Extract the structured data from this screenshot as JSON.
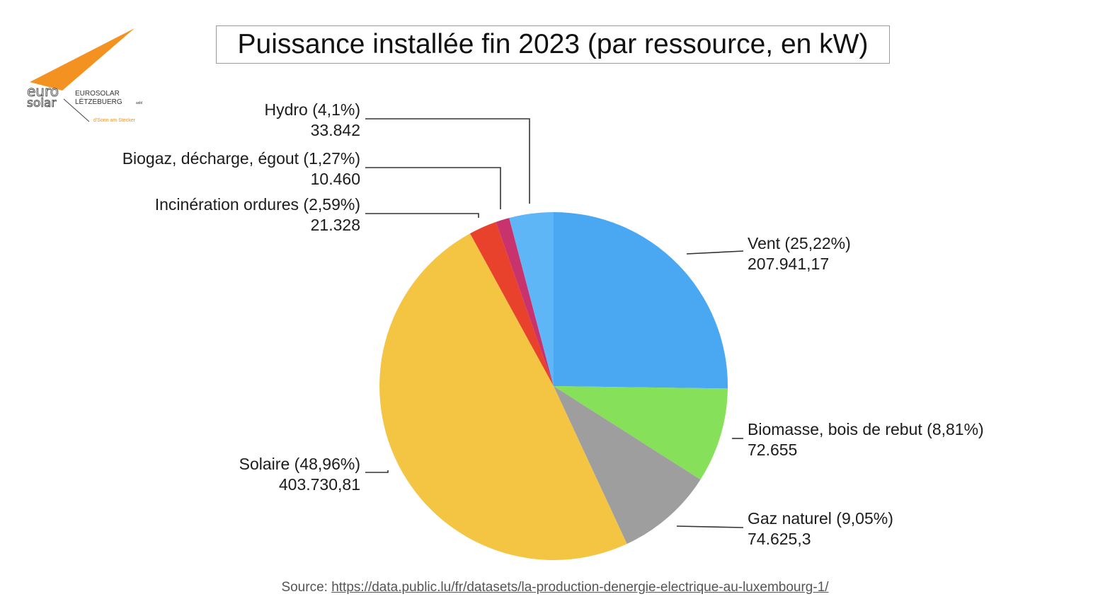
{
  "brand": {
    "logo_mark_top": "euro",
    "logo_mark_bottom": "solar",
    "name_line1": "EUROSOLAR",
    "name_line2": "LËTZEBUERG",
    "name_suffix": "asbl",
    "tagline": "d'Sonn am Stecker",
    "accent_color": "#f39221"
  },
  "chart_data": {
    "type": "pie",
    "title": "Puissance installée fin 2023 (par ressource, en kW)",
    "start_angle_deg": 0,
    "direction": "clockwise",
    "slices": [
      {
        "label": "Vent",
        "pct_text": "25,22%",
        "value_text": "207.941,17",
        "value": 207941.17,
        "percent": 25.22,
        "color": "#4aa8f2"
      },
      {
        "label": "Biomasse, bois de rebut",
        "pct_text": "8,81%",
        "value_text": "72.655",
        "value": 72655,
        "percent": 8.81,
        "color": "#86e05a"
      },
      {
        "label": "Gaz naturel",
        "pct_text": "9,05%",
        "value_text": "74.625,3",
        "value": 74625.3,
        "percent": 9.05,
        "color": "#9e9e9e"
      },
      {
        "label": "Solaire",
        "pct_text": "48,96%",
        "value_text": "403.730,81",
        "value": 403730.81,
        "percent": 48.96,
        "color": "#f4c443"
      },
      {
        "label": "Incinération ordures",
        "pct_text": "2,59%",
        "value_text": "21.328",
        "value": 21328,
        "percent": 2.59,
        "color": "#e8412c"
      },
      {
        "label": "Biogaz, décharge, égout",
        "pct_text": "1,27%",
        "value_text": "10.460",
        "value": 10460,
        "percent": 1.27,
        "color": "#c8336e"
      },
      {
        "label": "Hydro",
        "pct_text": "4,1%",
        "value_text": "33.842",
        "value": 33842,
        "percent": 4.1,
        "color": "#5fb6f6"
      }
    ]
  },
  "source": {
    "prefix": "Source: ",
    "url": "https://data.public.lu/fr/datasets/la-production-denergie-electrique-au-luxembourg-1/"
  }
}
